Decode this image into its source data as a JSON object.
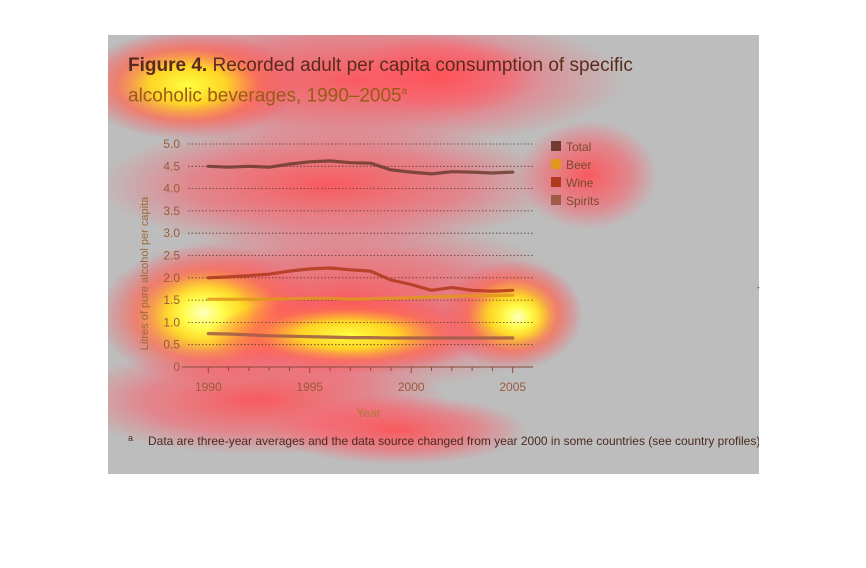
{
  "figure": {
    "label": "Figure 4.",
    "title_line1": " Recorded adult per capita consumption of specific",
    "title_line2": "alcoholic beverages, 1990–2005",
    "title_sup": "a"
  },
  "footnote": {
    "mark": "a",
    "text": "Data are three-year averages and the data source changed from year 2000 in some countries (see country profiles)."
  },
  "chart_data": {
    "type": "line",
    "title": "Recorded adult per capita consumption of specific alcoholic beverages, 1990–2005",
    "xlabel": "Year",
    "ylabel": "Litres of pure alcohol per capita",
    "xlim": [
      1989,
      2006
    ],
    "ylim": [
      0,
      5.0
    ],
    "xticks": [
      1990,
      1995,
      2000,
      2005
    ],
    "yticks": [
      0,
      0.5,
      1.0,
      1.5,
      2.0,
      2.5,
      3.0,
      3.5,
      4.0,
      4.5,
      5.0
    ],
    "ytick_labels": [
      "0",
      "0.5",
      "1.0",
      "1.5",
      "2.0",
      "2.5",
      "3.0",
      "3.5",
      "4.0",
      "4.5",
      "5.0"
    ],
    "grid": "horizontal-dotted",
    "legend_position": "right",
    "x": [
      1990,
      1991,
      1992,
      1993,
      1994,
      1995,
      1996,
      1997,
      1998,
      1999,
      2000,
      2001,
      2002,
      2003,
      2004,
      2005
    ],
    "series": [
      {
        "name": "Total",
        "color": "#6e3c30",
        "values": [
          4.5,
          4.48,
          4.5,
          4.48,
          4.55,
          4.6,
          4.62,
          4.58,
          4.57,
          4.42,
          4.37,
          4.33,
          4.38,
          4.37,
          4.35,
          4.37
        ]
      },
      {
        "name": "Beer",
        "color": "#e0981c",
        "values": [
          1.52,
          1.52,
          1.52,
          1.52,
          1.53,
          1.54,
          1.54,
          1.52,
          1.53,
          1.54,
          1.55,
          1.57,
          1.58,
          1.6,
          1.6,
          1.61
        ]
      },
      {
        "name": "Wine",
        "color": "#b0381c",
        "values": [
          2.0,
          2.02,
          2.05,
          2.08,
          2.15,
          2.2,
          2.22,
          2.18,
          2.15,
          1.95,
          1.85,
          1.72,
          1.78,
          1.72,
          1.7,
          1.72
        ]
      },
      {
        "name": "Spirits",
        "color": "#a05a48",
        "values": [
          0.75,
          0.74,
          0.72,
          0.7,
          0.69,
          0.68,
          0.67,
          0.66,
          0.66,
          0.65,
          0.65,
          0.65,
          0.65,
          0.65,
          0.65,
          0.65
        ]
      }
    ]
  }
}
